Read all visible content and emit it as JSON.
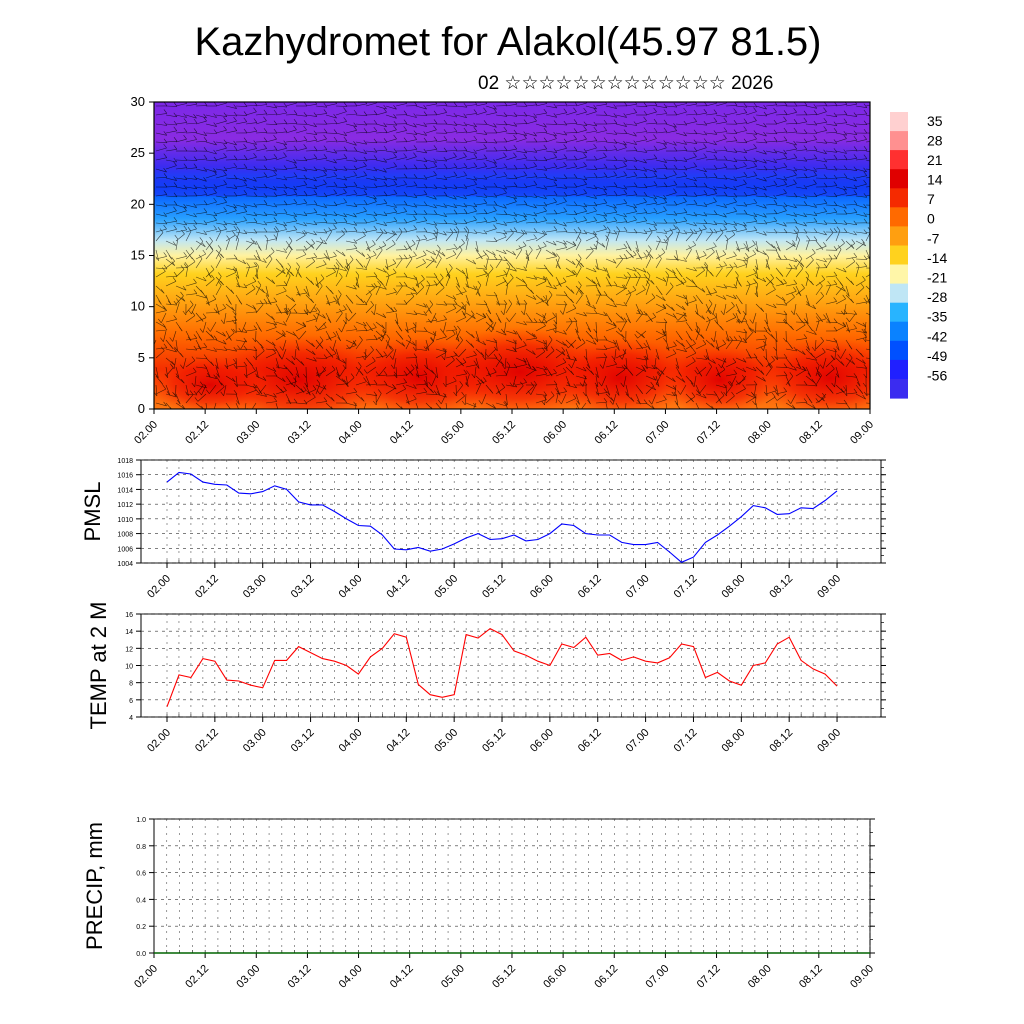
{
  "title": "Kazhydromet for Alakol(45.97 81.5)",
  "subtitle": "02 ☆☆☆☆☆☆☆☆☆☆☆☆☆ 2026",
  "chart_data": [
    {
      "type": "heatmap",
      "name": "temperature-wind cross-section",
      "ylim": [
        0,
        30
      ],
      "yticks": [
        "0",
        "5",
        "10",
        "15",
        "20",
        "25",
        "30"
      ],
      "xticks": [
        "02.00",
        "02.12",
        "03.00",
        "03.12",
        "04.00",
        "04.12",
        "05.00",
        "05.12",
        "06.00",
        "06.12",
        "07.00",
        "07.12",
        "08.00",
        "08.12",
        "09.00"
      ],
      "colorbar_labels": [
        "35",
        "28",
        "21",
        "14",
        "7",
        "0",
        "-7",
        "-14",
        "-21",
        "-28",
        "-35",
        "-42",
        "-49",
        "-56"
      ],
      "colorbar_range": [
        -63,
        42
      ],
      "colors": {
        "hot": "#e00000",
        "warm": "#ff6a00",
        "mild": "#ffd21e",
        "cool": "#64c8ff",
        "cold": "#0050ff",
        "frost": "#7b28e8"
      }
    },
    {
      "type": "line",
      "name": "PMSL",
      "ylabel": "PMSL",
      "ylim": [
        1004,
        1018
      ],
      "yticks": [
        "1004",
        "1006",
        "1008",
        "1010",
        "1012",
        "1014",
        "1016",
        "1018"
      ],
      "xticks": [
        "02.00",
        "02.12",
        "03.00",
        "03.12",
        "04.00",
        "04.12",
        "05.00",
        "05.12",
        "06.00",
        "06.12",
        "07.00",
        "07.12",
        "08.00",
        "08.12",
        "09.00"
      ],
      "color": "#0000ff",
      "values": [
        1015.0,
        1016.3,
        1016.1,
        1015.0,
        1014.7,
        1014.6,
        1013.5,
        1013.4,
        1013.7,
        1014.5,
        1014.0,
        1012.3,
        1011.9,
        1011.9,
        1011.0,
        1010.0,
        1009.1,
        1009.0,
        1007.8,
        1005.9,
        1005.8,
        1006.1,
        1005.6,
        1005.9,
        1006.6,
        1007.4,
        1008.0,
        1007.2,
        1007.3,
        1007.8,
        1007.0,
        1007.2,
        1008.0,
        1009.3,
        1009.1,
        1008.0,
        1007.8,
        1007.8,
        1006.8,
        1006.5,
        1006.5,
        1006.8,
        1005.5,
        1004.1,
        1004.8,
        1006.8,
        1007.8,
        1009.0,
        1010.3,
        1011.8,
        1011.5,
        1010.6,
        1010.7,
        1011.5,
        1011.4,
        1012.5,
        1013.8
      ]
    },
    {
      "type": "line",
      "name": "TEMP at 2 M",
      "ylabel": "TEMP at 2 M",
      "ylim": [
        4,
        16
      ],
      "yticks": [
        "4",
        "6",
        "8",
        "10",
        "12",
        "14",
        "16"
      ],
      "xticks": [
        "02.00",
        "02.12",
        "03.00",
        "03.12",
        "04.00",
        "04.12",
        "05.00",
        "05.12",
        "06.00",
        "06.12",
        "07.00",
        "07.12",
        "08.00",
        "08.12",
        "09.00"
      ],
      "color": "#ff0000",
      "values": [
        5.2,
        8.9,
        8.6,
        10.8,
        10.5,
        8.3,
        8.2,
        7.7,
        7.4,
        10.6,
        10.6,
        12.2,
        11.5,
        10.8,
        10.5,
        10.0,
        9.0,
        11.0,
        12.0,
        13.7,
        13.3,
        7.8,
        6.6,
        6.3,
        6.6,
        13.6,
        13.2,
        14.3,
        13.6,
        11.7,
        11.2,
        10.5,
        10.0,
        12.5,
        12.1,
        13.3,
        11.2,
        11.4,
        10.6,
        11.0,
        10.5,
        10.3,
        10.9,
        12.5,
        12.2,
        8.6,
        9.2,
        8.2,
        7.7,
        10.0,
        10.3,
        12.5,
        13.3,
        10.6,
        9.6,
        9.0,
        7.6
      ]
    },
    {
      "type": "line",
      "name": "PRECIP, mm",
      "ylabel": "PRECIP, mm",
      "ylim": [
        0.0,
        1.0
      ],
      "yticks": [
        "0.0",
        "0.2",
        "0.4",
        "0.6",
        "0.8",
        "1.0"
      ],
      "xticks": [
        "02.00",
        "02.12",
        "03.00",
        "03.12",
        "04.00",
        "04.12",
        "05.00",
        "05.12",
        "06.00",
        "06.12",
        "07.00",
        "07.12",
        "08.00",
        "08.12",
        "09.00"
      ],
      "color": "#006400",
      "values": [
        0,
        0,
        0,
        0,
        0,
        0,
        0,
        0,
        0,
        0,
        0,
        0,
        0,
        0,
        0,
        0,
        0,
        0,
        0,
        0,
        0,
        0,
        0,
        0,
        0,
        0,
        0,
        0,
        0,
        0,
        0,
        0,
        0,
        0,
        0,
        0,
        0,
        0,
        0,
        0,
        0,
        0,
        0,
        0,
        0,
        0,
        0,
        0,
        0,
        0,
        0,
        0,
        0,
        0,
        0,
        0,
        0
      ]
    }
  ]
}
